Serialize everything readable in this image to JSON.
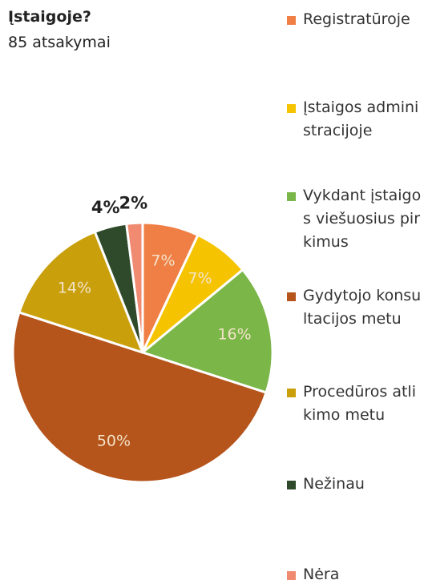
{
  "chart_data": {
    "type": "pie",
    "title": "Įstaigoje?",
    "subtitle": "85 atsakymai",
    "categories": [
      "Registratūroje",
      "Įstaigos administracijoje",
      "Vykdant įstaigos viešuosius pirkimus",
      "Gydytojo konsultacijos metu",
      "Procedūros atlikimo metu",
      "Nežinau",
      "Nėra"
    ],
    "values": [
      7,
      7,
      16,
      50,
      14,
      4,
      2
    ],
    "value_labels": [
      "7%",
      "7%",
      "16%",
      "50%",
      "14%",
      "4%",
      "2%"
    ],
    "colors": [
      "#f07f45",
      "#f5c300",
      "#7ab648",
      "#b5541b",
      "#c9a00c",
      "#2f4a2a",
      "#f08a70"
    ],
    "legend": "right"
  }
}
